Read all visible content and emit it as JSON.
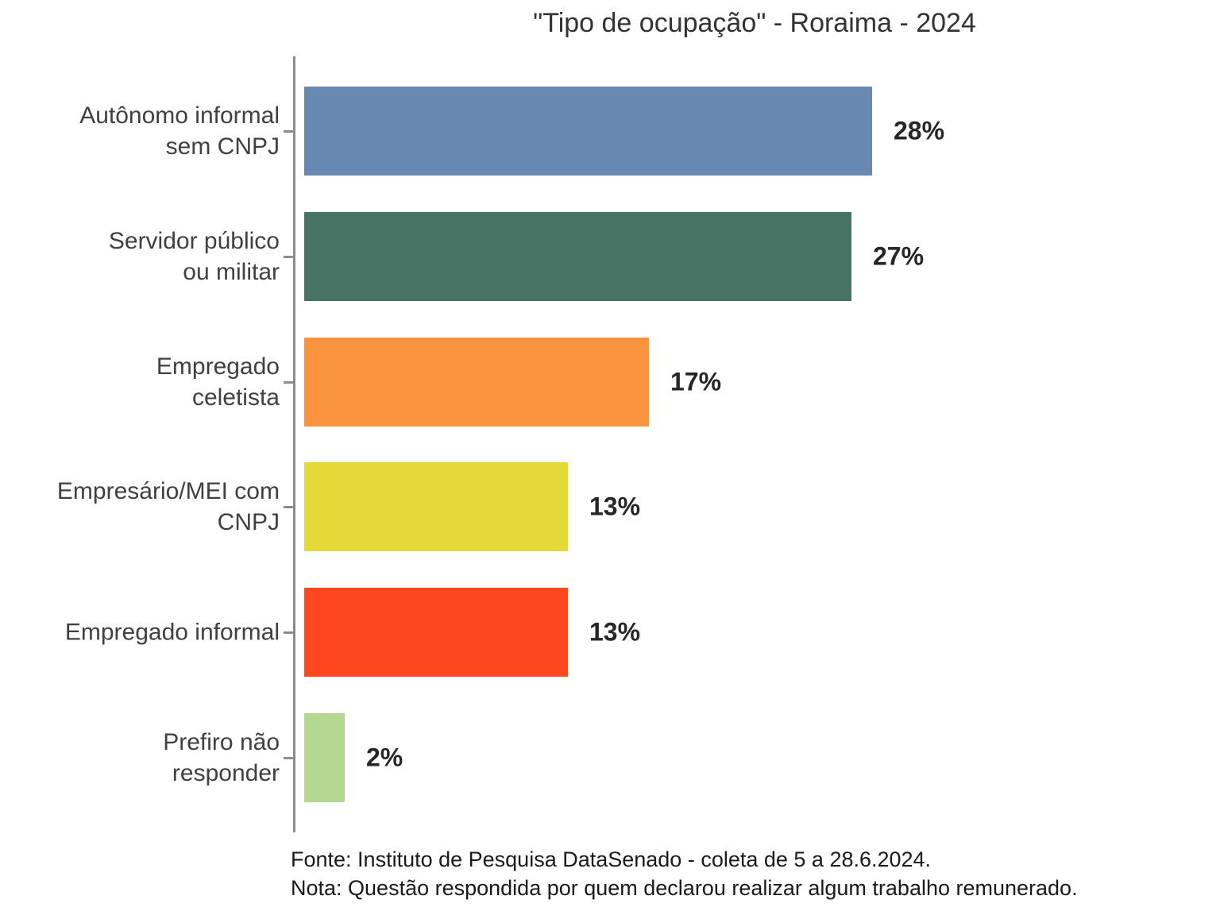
{
  "chart_data": {
    "type": "bar",
    "orientation": "horizontal",
    "title": "\"Tipo de ocupação\" - Roraima - 2024",
    "categories": [
      "Autônomo informal\nsem CNPJ",
      "Servidor público\nou militar",
      "Empregado\nceletista",
      "Empresário/MEI com\nCNPJ",
      "Empregado informal",
      "Prefiro não\nresponder"
    ],
    "values": [
      28,
      27,
      17,
      13,
      13,
      2
    ],
    "value_labels": [
      "28%",
      "27%",
      "17%",
      "13%",
      "13%",
      "2%"
    ],
    "colors": [
      "#6789b1",
      "#467363",
      "#f9933d",
      "#e5d938",
      "#fd481f",
      "#b2d98f"
    ],
    "xlabel": "",
    "ylabel": "",
    "xlim": [
      0,
      28
    ],
    "grid": false,
    "legend": false,
    "value_label_position": "right-of-bar",
    "axis_color": "#8c8c8c"
  },
  "footer": {
    "source": "Fonte: Instituto de Pesquisa DataSenado - coleta de 5 a 28.6.2024.",
    "note": "Nota: Questão respondida por quem declarou realizar algum trabalho remunerado."
  }
}
